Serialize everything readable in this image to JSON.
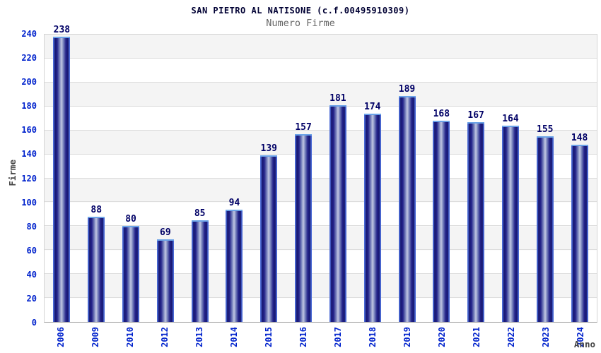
{
  "chart_data": {
    "type": "bar",
    "title": "SAN PIETRO AL NATISONE (c.f.00495910309)",
    "subtitle": "Numero Firme",
    "xlabel": "Anno",
    "ylabel": "Firme",
    "categories": [
      "2006",
      "2009",
      "2010",
      "2012",
      "2013",
      "2014",
      "2015",
      "2016",
      "2017",
      "2018",
      "2019",
      "2020",
      "2021",
      "2022",
      "2023",
      "2024"
    ],
    "values": [
      238,
      88,
      80,
      69,
      85,
      94,
      139,
      157,
      181,
      174,
      189,
      168,
      167,
      164,
      155,
      148
    ],
    "ylim": [
      0,
      240
    ],
    "yticks": [
      0,
      20,
      40,
      60,
      80,
      100,
      120,
      140,
      160,
      180,
      200,
      220,
      240
    ],
    "grid": true,
    "band_pattern": "alternating horizontal bands, gray at top band",
    "legend": null,
    "colors": {
      "tick_label_blue": "#0022cc",
      "value_label_navy": "#000066",
      "title_navy": "#000033",
      "subtitle_gray": "#666666",
      "axis_label_gray": "#444444",
      "bar_dark": "#17176f",
      "bar_highlight": "#c2c8e2",
      "bar_edge_blue": "#4a69d4",
      "bar_top_outline": "#6ba3e8",
      "band_gray": "#f4f4f4",
      "gridline": "#dcdcdc"
    }
  }
}
